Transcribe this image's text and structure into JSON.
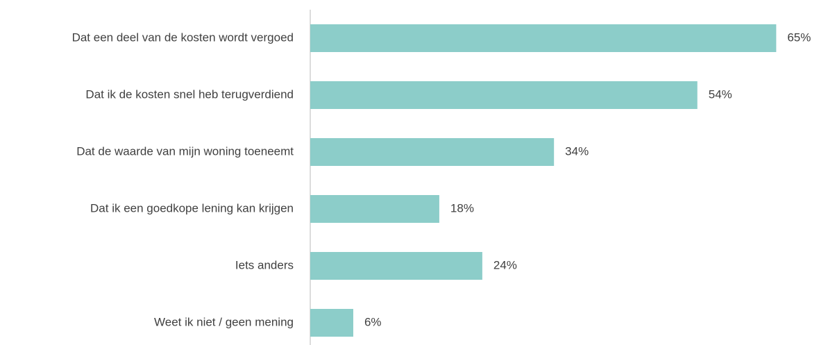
{
  "chart_data": {
    "type": "hbar",
    "categories": [
      "Dat een deel van de kosten wordt vergoed",
      "Dat ik de kosten snel heb terugverdiend",
      "Dat de waarde van mijn woning toeneemt",
      "Dat ik een goedkope lening kan krijgen",
      "Iets anders",
      "Weet ik niet / geen mening"
    ],
    "values": [
      65,
      54,
      34,
      18,
      24,
      6
    ],
    "value_labels": [
      "65%",
      "54%",
      "34%",
      "18%",
      "24%",
      "6%"
    ],
    "color": "#8ccdc9",
    "xlim": [
      0,
      70
    ]
  }
}
